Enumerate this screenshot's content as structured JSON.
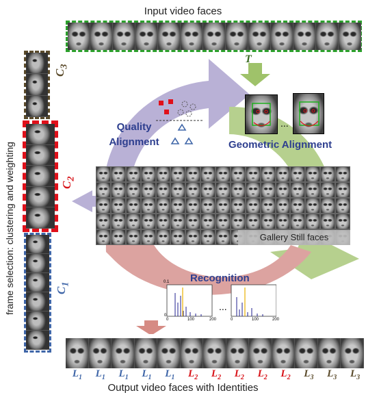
{
  "title_top": "Input video faces",
  "title_bottom": "Output video faces with Identities",
  "side_label": "frame selection: clustering and weighting",
  "t_label": "T",
  "quality_alignment": "Quality\nAlignment",
  "geometric_alignment": "Geometric Alignment",
  "recognition": "Recognition",
  "gallery_label": "Gallery Still faces",
  "ellipsis": "...",
  "clusters": [
    {
      "letter": "C",
      "sub": "3",
      "color": "#5a4a2a"
    },
    {
      "letter": "C",
      "sub": "2",
      "color": "#d8141a"
    },
    {
      "letter": "C",
      "sub": "1",
      "color": "#3f66a8"
    }
  ],
  "identities": [
    {
      "letter": "L",
      "sub": "1",
      "color": "#3f66a8"
    },
    {
      "letter": "L",
      "sub": "1",
      "color": "#3f66a8"
    },
    {
      "letter": "L",
      "sub": "1",
      "color": "#3f66a8"
    },
    {
      "letter": "L",
      "sub": "1",
      "color": "#3f66a8"
    },
    {
      "letter": "L",
      "sub": "1",
      "color": "#3f66a8"
    },
    {
      "letter": "L",
      "sub": "2",
      "color": "#d8141a"
    },
    {
      "letter": "L",
      "sub": "2",
      "color": "#d8141a"
    },
    {
      "letter": "L",
      "sub": "2",
      "color": "#d8141a"
    },
    {
      "letter": "L",
      "sub": "2",
      "color": "#d8141a"
    },
    {
      "letter": "L",
      "sub": "2",
      "color": "#d8141a"
    },
    {
      "letter": "L",
      "sub": "3",
      "color": "#5a4a2a"
    },
    {
      "letter": "L",
      "sub": "3",
      "color": "#5a4a2a"
    },
    {
      "letter": "L",
      "sub": "3",
      "color": "#5a4a2a"
    }
  ],
  "hist_ticks": {
    "y_top": "0.1",
    "y_zero": "0",
    "x0": "0",
    "x100": "100",
    "x200": "200"
  },
  "colors": {
    "purple": "#b9b1d6",
    "green": "#b6d08e",
    "red": "#dca3a0",
    "title_blue": "#2e3f8f",
    "dashed_green": "#2ca02c"
  }
}
